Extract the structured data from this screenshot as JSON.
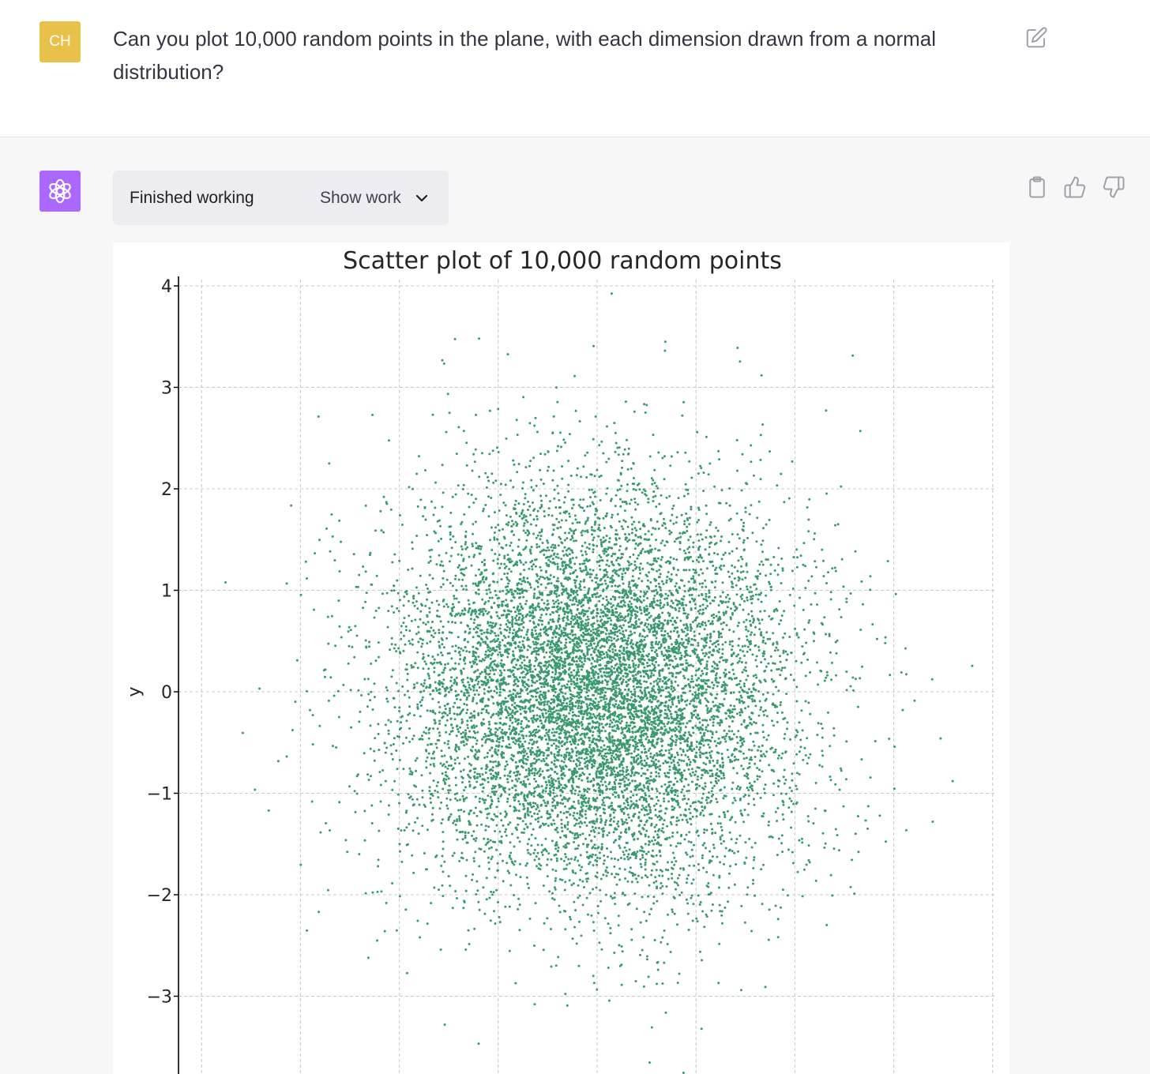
{
  "user_message": {
    "avatar_initials": "CH",
    "text": "Can you plot 10,000 random points in the plane, with each dimension drawn from a normal distribution?"
  },
  "assistant_message": {
    "status": "Finished working",
    "show_work_label": "Show work"
  },
  "icons": {
    "edit": "pencil-square-icon",
    "copy": "clipboard-icon",
    "like": "thumbs-up-icon",
    "dislike": "thumbs-down-icon",
    "bot_logo": "openai-logo-icon",
    "expand": "chevron-down-icon"
  },
  "colors": {
    "user_avatar": "#e8c14a",
    "bot_avatar": "#ab68ff",
    "point": "#3a9a6e"
  },
  "chart_data": {
    "type": "scatter",
    "title": "Scatter plot of 10,000 random points",
    "ylabel": "y",
    "xlabel": "",
    "n_points": 10000,
    "distribution": "standard normal in x and y",
    "x_range": [
      -4,
      4
    ],
    "ylim": [
      -3.9,
      4.1
    ],
    "y_ticks": [
      "4",
      "3",
      "2",
      "1",
      "0",
      "−1",
      "−2",
      "−3"
    ],
    "y_tick_values": [
      4,
      3,
      2,
      1,
      0,
      -1,
      -2,
      -3
    ],
    "x_gridlines": [
      -4,
      -3,
      -2,
      -1,
      0,
      1,
      2,
      3,
      4
    ],
    "grid": true,
    "grid_style": "dashed"
  }
}
